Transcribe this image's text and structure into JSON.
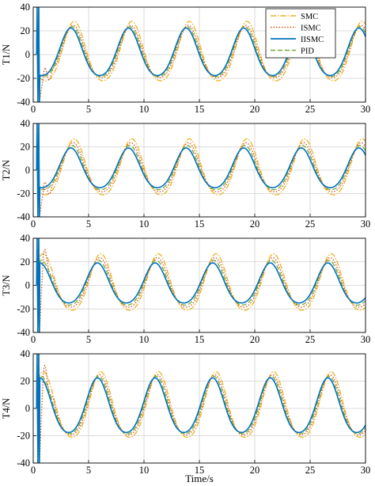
{
  "chart_data": {
    "type": "line",
    "xlabel": "Time/s",
    "xlim": [
      0,
      30
    ],
    "xticks": [
      0,
      5,
      10,
      15,
      20,
      25,
      30
    ],
    "yticks": [
      -40,
      -20,
      0,
      20,
      40
    ],
    "grid": true,
    "legend": {
      "placement": "top-right",
      "entries": [
        {
          "name": "SMC",
          "color": "#EDB120",
          "dash": "dash-dot"
        },
        {
          "name": "ISMC",
          "color": "#D95319",
          "dash": "dotted"
        },
        {
          "name": "IISMC",
          "color": "#0072BD",
          "dash": "solid"
        },
        {
          "name": "PID",
          "color": "#77AC30",
          "dash": "dashed"
        }
      ]
    },
    "subplots": [
      {
        "ylabel": "T1/N",
        "ylim": [
          -40,
          40
        ],
        "period": 5.2,
        "peak_time": 3.4,
        "amplitude": 20,
        "series": [
          {
            "name": "SMC",
            "amplitude": 25,
            "phase_delay": 0.3
          },
          {
            "name": "ISMC",
            "amplitude": 22,
            "phase_delay": 0.2
          },
          {
            "name": "IISMC",
            "amplitude": 20,
            "phase_delay": 0.0
          },
          {
            "name": "PID",
            "amplitude": 21,
            "phase_delay": 0.1
          }
        ]
      },
      {
        "ylabel": "T2/N",
        "ylim": [
          -40,
          40
        ],
        "period": 5.2,
        "peak_time": 3.4,
        "amplitude": 18,
        "series": [
          {
            "name": "SMC",
            "amplitude": 24,
            "phase_delay": 0.3
          },
          {
            "name": "ISMC",
            "amplitude": 21,
            "phase_delay": 0.2
          },
          {
            "name": "IISMC",
            "amplitude": 17,
            "phase_delay": 0.0
          },
          {
            "name": "PID",
            "amplitude": 19,
            "phase_delay": 0.1
          }
        ]
      },
      {
        "ylabel": "T3/N",
        "ylim": [
          -40,
          40
        ],
        "period": 5.2,
        "peak_time": 5.8,
        "amplitude": 18,
        "series": [
          {
            "name": "SMC",
            "amplitude": 24,
            "phase_delay": 0.3
          },
          {
            "name": "ISMC",
            "amplitude": 21,
            "phase_delay": 0.2
          },
          {
            "name": "IISMC",
            "amplitude": 17,
            "phase_delay": 0.0
          },
          {
            "name": "PID",
            "amplitude": 19,
            "phase_delay": 0.1
          }
        ]
      },
      {
        "ylabel": "T4/N",
        "ylim": [
          -40,
          40
        ],
        "period": 5.2,
        "peak_time": 5.8,
        "amplitude": 20,
        "series": [
          {
            "name": "SMC",
            "amplitude": 24,
            "phase_delay": 0.3
          },
          {
            "name": "ISMC",
            "amplitude": 22,
            "phase_delay": 0.2
          },
          {
            "name": "IISMC",
            "amplitude": 20,
            "phase_delay": 0.0
          },
          {
            "name": "PID",
            "amplitude": 21,
            "phase_delay": 0.1
          }
        ]
      }
    ]
  }
}
